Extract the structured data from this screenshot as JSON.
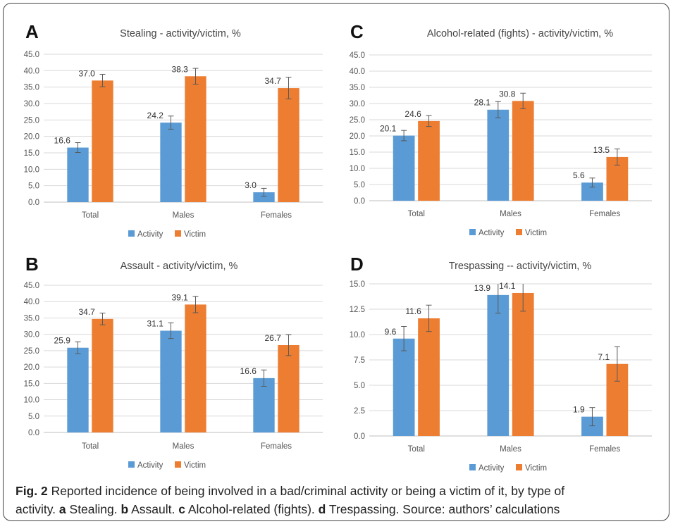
{
  "colors": {
    "activity": "#5B9BD5",
    "victim": "#ED7D31",
    "grid": "#d9d9d9",
    "axis": "#bfbfbf",
    "errorbar": "#595959"
  },
  "chart_data": [
    {
      "panel": "A",
      "type": "bar",
      "title": "Stealing - activity/victim, %",
      "categories": [
        "Total",
        "Males",
        "Females"
      ],
      "series": [
        {
          "name": "Activity",
          "values": [
            16.6,
            24.2,
            3.0
          ],
          "labels": [
            "16.6",
            "24.2",
            "3.0"
          ],
          "errors": [
            1.5,
            2.0,
            1.2
          ]
        },
        {
          "name": "Victim",
          "values": [
            37.0,
            38.3,
            34.7
          ],
          "labels": [
            "37.0",
            "38.3",
            "34.7"
          ],
          "errors": [
            1.9,
            2.4,
            3.3
          ]
        }
      ],
      "ylim": [
        0,
        45
      ],
      "yticks": [
        "0.0",
        "5.0",
        "10.0",
        "15.0",
        "20.0",
        "25.0",
        "30.0",
        "35.0",
        "40.0",
        "45.0"
      ],
      "grid": true,
      "legend": "bottom"
    },
    {
      "panel": "C",
      "type": "bar",
      "title": "Alcohol-related (fights) - activity/victim, %",
      "categories": [
        "Total",
        "Males",
        "Females"
      ],
      "series": [
        {
          "name": "Activity",
          "values": [
            20.1,
            28.1,
            5.6
          ],
          "labels": [
            "20.1",
            "28.1",
            "5.6"
          ],
          "errors": [
            1.6,
            2.5,
            1.4
          ]
        },
        {
          "name": "Victim",
          "values": [
            24.6,
            30.8,
            13.5
          ],
          "labels": [
            "24.6",
            "30.8",
            "13.5"
          ],
          "errors": [
            1.7,
            2.4,
            2.5
          ]
        }
      ],
      "ylim": [
        0,
        45
      ],
      "yticks": [
        "0.0",
        "5.0",
        "10.0",
        "15.0",
        "20.0",
        "25.0",
        "30.0",
        "35.0",
        "40.0",
        "45.0"
      ],
      "grid": true,
      "legend": "bottom"
    },
    {
      "panel": "B",
      "type": "bar",
      "title": "Assault - activity/victim, %",
      "categories": [
        "Total",
        "Males",
        "Females"
      ],
      "series": [
        {
          "name": "Activity",
          "values": [
            25.9,
            31.1,
            16.6
          ],
          "labels": [
            "25.9",
            "31.1",
            "16.6"
          ],
          "errors": [
            1.8,
            2.4,
            2.5
          ]
        },
        {
          "name": "Victim",
          "values": [
            34.7,
            39.1,
            26.7
          ],
          "labels": [
            "34.7",
            "39.1",
            "26.7"
          ],
          "errors": [
            1.8,
            2.5,
            3.2
          ]
        }
      ],
      "ylim": [
        0,
        45
      ],
      "yticks": [
        "0.0",
        "5.0",
        "10.0",
        "15.0",
        "20.0",
        "25.0",
        "30.0",
        "35.0",
        "40.0",
        "45.0"
      ],
      "grid": true,
      "legend": "bottom"
    },
    {
      "panel": "D",
      "type": "bar",
      "title": "Trespassing -- activity/victim, %",
      "categories": [
        "Total",
        "Males",
        "Females"
      ],
      "series": [
        {
          "name": "Activity",
          "values": [
            9.6,
            13.9,
            1.9
          ],
          "labels": [
            "9.6",
            "13.9",
            "1.9"
          ],
          "errors": [
            1.2,
            1.8,
            0.9
          ]
        },
        {
          "name": "Victim",
          "values": [
            11.6,
            14.1,
            7.1
          ],
          "labels": [
            "11.6",
            "14.1",
            "7.1"
          ],
          "errors": [
            1.3,
            1.8,
            1.7
          ]
        }
      ],
      "ylim": [
        0,
        15
      ],
      "yticks": [
        "0.0",
        "2.5",
        "5.0",
        "7.5",
        "10.0",
        "12.5",
        "15.0"
      ],
      "grid": true,
      "legend": "bottom"
    }
  ],
  "caption": {
    "fig_label": "Fig. 2",
    "line1": " Reported incidence of being involved in a bad/criminal activity or being a victim of it, by type of",
    "line2_pre": "activity. ",
    "a": "a",
    "a_text": " Stealing. ",
    "b": "b",
    "b_text": " Assault. ",
    "c": "c",
    "c_text": " Alcohol-related (fights). ",
    "d": "d",
    "d_text": " Trespassing. Source: authors’ calculations"
  }
}
